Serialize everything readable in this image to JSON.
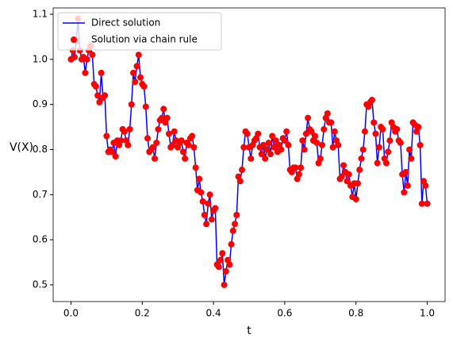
{
  "chart_data": {
    "type": "line",
    "xlabel": "t",
    "ylabel": "V(X)",
    "xlim": [
      -0.05,
      1.05
    ],
    "ylim": [
      0.463,
      1.114
    ],
    "xticks": [
      {
        "value": 0,
        "label": "0.0"
      },
      0.2,
      0.4,
      0.6,
      0.8,
      {
        "value": 1,
        "label": "1.0"
      }
    ],
    "yticks": [
      0.5,
      0.6,
      0.7,
      0.8,
      0.9,
      {
        "value": 1,
        "label": "1.0"
      },
      1.1
    ],
    "legend": "upper left",
    "x": [
      0,
      0.005,
      0.01,
      0.015,
      0.02,
      0.025,
      0.03,
      0.035,
      0.04,
      0.045,
      0.05,
      0.055,
      0.06,
      0.065,
      0.07,
      0.075,
      0.08,
      0.085,
      0.09,
      0.095,
      0.1,
      0.105,
      0.11,
      0.115,
      0.12,
      0.125,
      0.13,
      0.135,
      0.14,
      0.145,
      0.15,
      0.155,
      0.16,
      0.165,
      0.17,
      0.175,
      0.18,
      0.185,
      0.19,
      0.195,
      0.2,
      0.205,
      0.21,
      0.215,
      0.22,
      0.225,
      0.23,
      0.235,
      0.24,
      0.245,
      0.25,
      0.255,
      0.26,
      0.265,
      0.27,
      0.275,
      0.28,
      0.285,
      0.29,
      0.295,
      0.3,
      0.305,
      0.31,
      0.315,
      0.32,
      0.325,
      0.33,
      0.335,
      0.34,
      0.345,
      0.35,
      0.355,
      0.36,
      0.365,
      0.37,
      0.375,
      0.38,
      0.385,
      0.39,
      0.395,
      0.4,
      0.405,
      0.41,
      0.415,
      0.42,
      0.425,
      0.43,
      0.435,
      0.44,
      0.445,
      0.45,
      0.455,
      0.46,
      0.465,
      0.47,
      0.475,
      0.48,
      0.485,
      0.49,
      0.495,
      0.5,
      0.505,
      0.51,
      0.515,
      0.52,
      0.525,
      0.53,
      0.535,
      0.54,
      0.545,
      0.55,
      0.555,
      0.56,
      0.565,
      0.57,
      0.575,
      0.58,
      0.585,
      0.59,
      0.595,
      0.6,
      0.605,
      0.61,
      0.615,
      0.62,
      0.625,
      0.63,
      0.635,
      0.64,
      0.645,
      0.65,
      0.655,
      0.66,
      0.665,
      0.67,
      0.675,
      0.68,
      0.685,
      0.69,
      0.695,
      0.7,
      0.705,
      0.71,
      0.715,
      0.72,
      0.725,
      0.73,
      0.735,
      0.74,
      0.745,
      0.75,
      0.755,
      0.76,
      0.765,
      0.77,
      0.775,
      0.78,
      0.785,
      0.79,
      0.795,
      0.8,
      0.805,
      0.81,
      0.815,
      0.82,
      0.825,
      0.83,
      0.835,
      0.84,
      0.845,
      0.85,
      0.855,
      0.86,
      0.865,
      0.87,
      0.875,
      0.88,
      0.885,
      0.89,
      0.895,
      0.9,
      0.905,
      0.91,
      0.915,
      0.92,
      0.925,
      0.93,
      0.935,
      0.94,
      0.945,
      0.95,
      0.955,
      0.96,
      0.965,
      0.97,
      0.975,
      0.98,
      0.985,
      0.99,
      0.995,
      1
    ],
    "series": [
      {
        "name": "Direct solution",
        "color": "#0000ff",
        "style": "line",
        "values": [
          1.0,
          1.02,
          1.005,
          1.04,
          1.09,
          1.02,
          1.0,
          1.005,
          0.97,
          1.0,
          1.02,
          1.03,
          1.01,
          0.945,
          0.94,
          0.92,
          0.905,
          0.97,
          0.915,
          0.92,
          0.83,
          0.795,
          0.8,
          0.795,
          0.815,
          0.785,
          0.82,
          0.81,
          0.82,
          0.845,
          0.84,
          0.82,
          0.81,
          0.845,
          0.9,
          0.97,
          0.95,
          0.985,
          1.01,
          0.96,
          0.945,
          0.94,
          0.895,
          0.825,
          0.795,
          0.8,
          0.805,
          0.78,
          0.815,
          0.845,
          0.865,
          0.87,
          0.89,
          0.86,
          0.87,
          0.835,
          0.805,
          0.81,
          0.84,
          0.82,
          0.805,
          0.815,
          0.82,
          0.795,
          0.78,
          0.815,
          0.81,
          0.825,
          0.83,
          0.805,
          0.76,
          0.71,
          0.735,
          0.705,
          0.685,
          0.655,
          0.635,
          0.68,
          0.7,
          0.645,
          0.665,
          0.67,
          0.545,
          0.54,
          0.555,
          0.57,
          0.5,
          0.53,
          0.555,
          0.545,
          0.59,
          0.62,
          0.635,
          0.655,
          0.74,
          0.73,
          0.755,
          0.805,
          0.84,
          0.835,
          0.805,
          0.78,
          0.81,
          0.82,
          0.825,
          0.835,
          0.805,
          0.79,
          0.81,
          0.78,
          0.8,
          0.815,
          0.79,
          0.83,
          0.805,
          0.82,
          0.795,
          0.81,
          0.8,
          0.825,
          0.82,
          0.84,
          0.81,
          0.755,
          0.75,
          0.76,
          0.76,
          0.735,
          0.745,
          0.76,
          0.82,
          0.8,
          0.835,
          0.87,
          0.845,
          0.84,
          0.82,
          0.83,
          0.815,
          0.77,
          0.78,
          0.81,
          0.845,
          0.87,
          0.88,
          0.86,
          0.86,
          0.805,
          0.84,
          0.82,
          0.81,
          0.735,
          0.74,
          0.765,
          0.75,
          0.73,
          0.745,
          0.72,
          0.695,
          0.725,
          0.69,
          0.725,
          0.755,
          0.78,
          0.8,
          0.84,
          0.9,
          0.895,
          0.905,
          0.91,
          0.86,
          0.835,
          0.77,
          0.805,
          0.85,
          0.845,
          0.78,
          0.77,
          0.795,
          0.82,
          0.86,
          0.85,
          0.84,
          0.845,
          0.82,
          0.815,
          0.745,
          0.705,
          0.75,
          0.72,
          0.8,
          0.78,
          0.86,
          0.855,
          0.84,
          0.85,
          0.81,
          0.68,
          0.73,
          0.72,
          0.68
        ]
      },
      {
        "name": "Solution via chain rule",
        "color": "#ff0000",
        "style": "markers",
        "values": [
          1.0,
          1.02,
          1.005,
          1.04,
          1.09,
          1.02,
          1.0,
          1.005,
          0.97,
          1.0,
          1.02,
          1.03,
          1.01,
          0.945,
          0.94,
          0.92,
          0.905,
          0.97,
          0.915,
          0.92,
          0.83,
          0.795,
          0.8,
          0.795,
          0.815,
          0.785,
          0.82,
          0.81,
          0.82,
          0.845,
          0.84,
          0.82,
          0.81,
          0.845,
          0.9,
          0.97,
          0.95,
          0.985,
          1.01,
          0.96,
          0.945,
          0.94,
          0.895,
          0.825,
          0.795,
          0.8,
          0.805,
          0.78,
          0.815,
          0.845,
          0.865,
          0.87,
          0.89,
          0.86,
          0.87,
          0.835,
          0.805,
          0.81,
          0.84,
          0.82,
          0.805,
          0.815,
          0.82,
          0.795,
          0.78,
          0.815,
          0.81,
          0.825,
          0.83,
          0.805,
          0.76,
          0.71,
          0.735,
          0.705,
          0.685,
          0.655,
          0.635,
          0.68,
          0.7,
          0.645,
          0.665,
          0.67,
          0.545,
          0.54,
          0.555,
          0.57,
          0.5,
          0.53,
          0.555,
          0.545,
          0.59,
          0.62,
          0.635,
          0.655,
          0.74,
          0.73,
          0.755,
          0.805,
          0.84,
          0.835,
          0.805,
          0.78,
          0.81,
          0.82,
          0.825,
          0.835,
          0.805,
          0.79,
          0.81,
          0.78,
          0.8,
          0.815,
          0.79,
          0.83,
          0.805,
          0.82,
          0.795,
          0.81,
          0.8,
          0.825,
          0.82,
          0.84,
          0.81,
          0.755,
          0.75,
          0.76,
          0.76,
          0.735,
          0.745,
          0.76,
          0.82,
          0.8,
          0.835,
          0.87,
          0.845,
          0.84,
          0.82,
          0.83,
          0.815,
          0.77,
          0.78,
          0.81,
          0.845,
          0.87,
          0.88,
          0.86,
          0.86,
          0.805,
          0.84,
          0.82,
          0.81,
          0.735,
          0.74,
          0.765,
          0.75,
          0.73,
          0.745,
          0.72,
          0.695,
          0.725,
          0.69,
          0.725,
          0.755,
          0.78,
          0.8,
          0.84,
          0.9,
          0.895,
          0.905,
          0.91,
          0.86,
          0.835,
          0.77,
          0.805,
          0.85,
          0.845,
          0.78,
          0.77,
          0.795,
          0.82,
          0.86,
          0.85,
          0.84,
          0.845,
          0.82,
          0.815,
          0.745,
          0.705,
          0.75,
          0.72,
          0.8,
          0.78,
          0.86,
          0.855,
          0.84,
          0.85,
          0.81,
          0.68,
          0.73,
          0.72,
          0.68
        ]
      }
    ]
  }
}
